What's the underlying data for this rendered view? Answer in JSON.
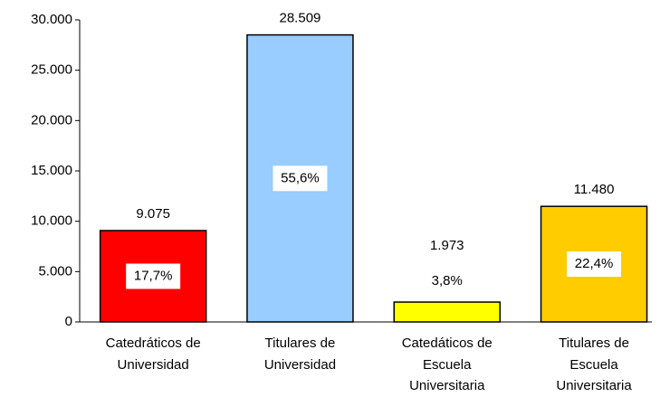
{
  "chart_data": {
    "type": "bar",
    "categories": [
      "Catedráticos de\nUniversidad",
      "Titulares de\nUniversidad",
      "Catedáticos de\nEscuela\nUniversitaria",
      "Titulares de\nEscuela\nUniversitaria"
    ],
    "values": [
      9075,
      28509,
      1973,
      11480
    ],
    "value_labels": [
      "9.075",
      "28.509",
      "1.973",
      "11.480"
    ],
    "shares": [
      17.7,
      55.6,
      3.8,
      22.4
    ],
    "share_labels": [
      "17,7%",
      "55,6%",
      "3,8%",
      "22,4%"
    ],
    "colors": [
      "#ff0000",
      "#99ccff",
      "#ffff00",
      "#ffcc00"
    ],
    "ylim": [
      0,
      30000
    ],
    "yticks": [
      0,
      {
        "value": 5000,
        "label": "5.000"
      },
      {
        "value": 10000,
        "label": "10.000"
      },
      {
        "value": 15000,
        "label": "15.000"
      },
      {
        "value": 20000,
        "label": "20.000"
      },
      {
        "value": 25000,
        "label": "25.000"
      },
      {
        "value": 30000,
        "label": "30.000"
      }
    ]
  }
}
